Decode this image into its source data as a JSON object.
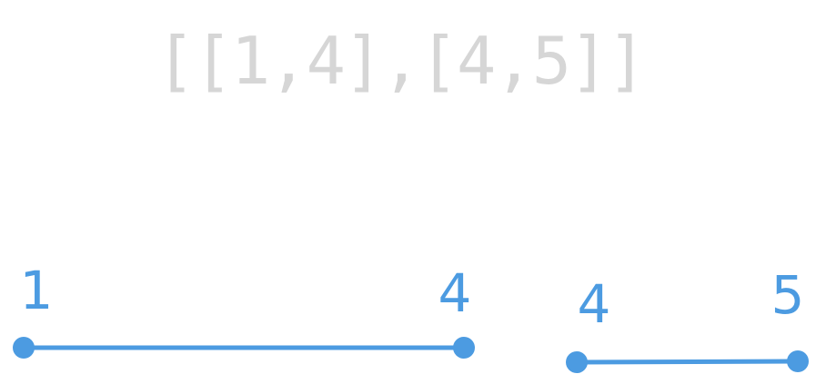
{
  "title": "[[1,4],[4,5]]",
  "colors": {
    "accent": "#4c9be1",
    "title": "#d6d6d6",
    "background": "#ffffff"
  },
  "intervals": [
    {
      "start_label": "1",
      "end_label": "4"
    },
    {
      "start_label": "4",
      "end_label": "5"
    }
  ]
}
